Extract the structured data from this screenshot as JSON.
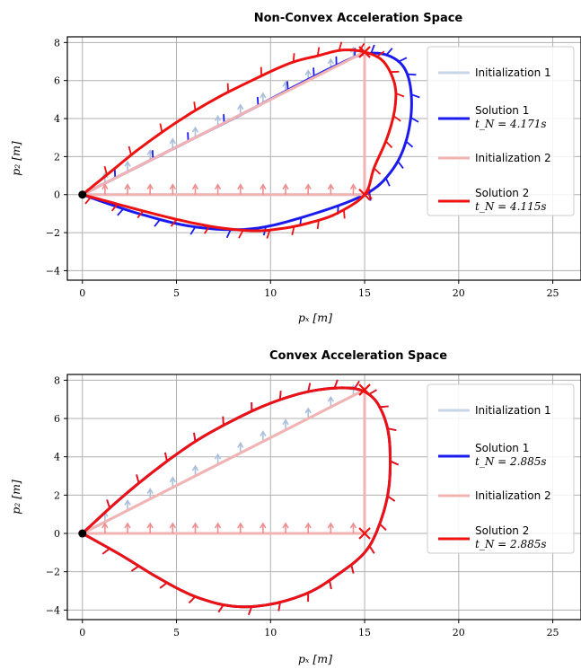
{
  "chart_data": [
    {
      "type": "line",
      "title": "Non-Convex Acceleration Space",
      "xlabel": "p_x [m]",
      "ylabel": "p_z [m]",
      "xlim": [
        -0.8,
        26.5
      ],
      "ylim": [
        -4.5,
        8.3
      ],
      "xticks": [
        0,
        5,
        10,
        15,
        20,
        25
      ],
      "yticks": [
        -4,
        -2,
        0,
        2,
        4,
        6,
        8
      ],
      "grid": true,
      "legend_position": "right",
      "series": [
        {
          "name": "Initialization 1",
          "color": "#c8d6ea",
          "arrow_color": "#aabfdb",
          "style": "init",
          "x": [
            0,
            15,
            15,
            0
          ],
          "y": [
            0,
            7.5,
            0,
            0
          ]
        },
        {
          "name": "Solution 1",
          "sub": "t_N = 4.171s",
          "color": "#1a1aee",
          "style": "solution",
          "x": [
            0,
            3,
            6,
            9,
            11.5,
            13.5,
            15,
            16.3,
            17.2,
            17.5,
            17.2,
            16.4,
            15,
            12,
            9,
            6,
            3,
            0
          ],
          "y": [
            0,
            1.5,
            3,
            4.5,
            5.8,
            6.8,
            7.4,
            7.3,
            6.5,
            4.8,
            2.8,
            1.2,
            0,
            -1.1,
            -1.8,
            -1.7,
            -1.0,
            0
          ]
        },
        {
          "name": "Initialization 2",
          "color": "#f2b3b3",
          "arrow_color": "#ee8e8e",
          "style": "init",
          "x": [
            0,
            15,
            15,
            0
          ],
          "y": [
            0,
            7.5,
            0,
            0
          ]
        },
        {
          "name": "Solution 2",
          "sub": "t_N = 4.115s",
          "color": "#ee1111",
          "style": "solution",
          "x": [
            0,
            1.5,
            3,
            5,
            7,
            9,
            11,
            12.5,
            13.8,
            15,
            16,
            16.6,
            16.6,
            16.2,
            15.5,
            15,
            13.5,
            12,
            10.5,
            9,
            7,
            5,
            3,
            1.5,
            0
          ],
          "y": [
            0,
            1.2,
            2.4,
            3.8,
            5.0,
            6.0,
            6.9,
            7.3,
            7.6,
            7.5,
            7.0,
            5.8,
            4.5,
            3.0,
            1.4,
            0,
            -1.0,
            -1.5,
            -1.8,
            -1.9,
            -1.7,
            -1.3,
            -0.8,
            -0.4,
            0
          ]
        }
      ]
    },
    {
      "type": "line",
      "title": "Convex Acceleration Space",
      "xlabel": "p_x [m]",
      "ylabel": "p_z [m]",
      "xlim": [
        -0.8,
        26.5
      ],
      "ylim": [
        -4.5,
        8.3
      ],
      "xticks": [
        0,
        5,
        10,
        15,
        20,
        25
      ],
      "yticks": [
        -4,
        -2,
        0,
        2,
        4,
        6,
        8
      ],
      "grid": true,
      "legend_position": "right",
      "series": [
        {
          "name": "Initialization 1",
          "color": "#c8d6ea",
          "arrow_color": "#aabfdb",
          "style": "init",
          "x": [
            0,
            15,
            15,
            0
          ],
          "y": [
            0,
            7.5,
            0,
            0
          ]
        },
        {
          "name": "Solution 1",
          "sub": "t_N = 2.885s",
          "color": "#1a1aee",
          "style": "solution",
          "x": [
            0,
            2,
            4,
            6,
            8,
            10,
            12,
            13.8,
            15,
            15.8,
            16.3,
            16.3,
            15.8,
            15,
            13.5,
            12,
            10,
            8,
            6,
            4,
            2,
            0
          ],
          "y": [
            0,
            1.8,
            3.4,
            4.8,
            5.9,
            6.8,
            7.4,
            7.6,
            7.4,
            6.6,
            5.0,
            2.5,
            0.5,
            -1.0,
            -2.2,
            -3.1,
            -3.7,
            -3.8,
            -3.3,
            -2.3,
            -1.1,
            0
          ]
        },
        {
          "name": "Initialization 2",
          "color": "#f2b3b3",
          "arrow_color": "#ee8e8e",
          "style": "init",
          "x": [
            0,
            15,
            15,
            0
          ],
          "y": [
            0,
            7.5,
            0,
            0
          ]
        },
        {
          "name": "Solution 2",
          "sub": "t_N = 2.885s",
          "color": "#ee1111",
          "style": "solution",
          "x": [
            0,
            2,
            4,
            6,
            8,
            10,
            12,
            13.8,
            15,
            15.8,
            16.3,
            16.3,
            15.8,
            15,
            13.5,
            12,
            10,
            8,
            6,
            4,
            2,
            0
          ],
          "y": [
            0,
            1.8,
            3.4,
            4.8,
            5.9,
            6.8,
            7.4,
            7.6,
            7.4,
            6.6,
            5.0,
            2.5,
            0.5,
            -1.0,
            -2.2,
            -3.1,
            -3.7,
            -3.8,
            -3.3,
            -2.3,
            -1.1,
            0
          ]
        }
      ]
    }
  ]
}
